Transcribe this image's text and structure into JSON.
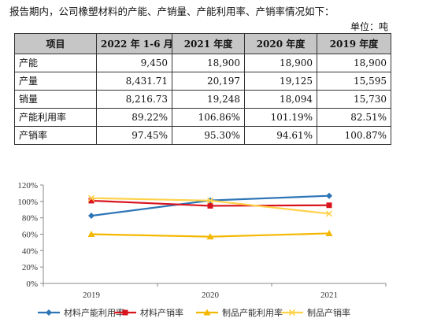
{
  "intro_text": "报告期内，公司橡塑材料的产能、产销量、产能利用率、产销率情况如下：",
  "unit_note": "单位：吨",
  "table": {
    "headers": [
      "项目",
      "2022 年 1-6 月",
      "2021 年度",
      "2020 年度",
      "2019 年度"
    ],
    "rows": [
      {
        "label": "产能",
        "values": [
          "9,450",
          "18,900",
          "18,900",
          "18,900"
        ]
      },
      {
        "label": "产量",
        "values": [
          "8,431.71",
          "20,197",
          "19,125",
          "15,595"
        ]
      },
      {
        "label": "销量",
        "values": [
          "8,216.73",
          "19,248",
          "18,094",
          "15,730"
        ]
      },
      {
        "label": "产能利用率",
        "values": [
          "89.22%",
          "106.86%",
          "101.19%",
          "82.51%"
        ]
      },
      {
        "label": "产销率",
        "values": [
          "97.45%",
          "95.30%",
          "94.61%",
          "100.87%"
        ]
      }
    ]
  },
  "chart_data": {
    "type": "line",
    "categories": [
      "2019",
      "2020",
      "2021"
    ],
    "ylim": [
      0,
      120
    ],
    "yticks": [
      "0%",
      "20%",
      "40%",
      "60%",
      "80%",
      "100%",
      "120%"
    ],
    "series": [
      {
        "name": "材料产能利用率",
        "color": "#2e75b6",
        "marker": "diamond",
        "values": [
          82.51,
          101.19,
          106.86
        ]
      },
      {
        "name": "材料产销率",
        "color": "#d9141e",
        "marker": "square",
        "values": [
          100.87,
          94.61,
          95.3
        ]
      },
      {
        "name": "制品产能利用率",
        "color": "#f5b800",
        "marker": "triangle",
        "values": [
          60,
          57,
          61
        ]
      },
      {
        "name": "制品产销率",
        "color": "#ffd24a",
        "marker": "x",
        "values": [
          104,
          101,
          85
        ]
      }
    ],
    "legend_position": "bottom"
  }
}
